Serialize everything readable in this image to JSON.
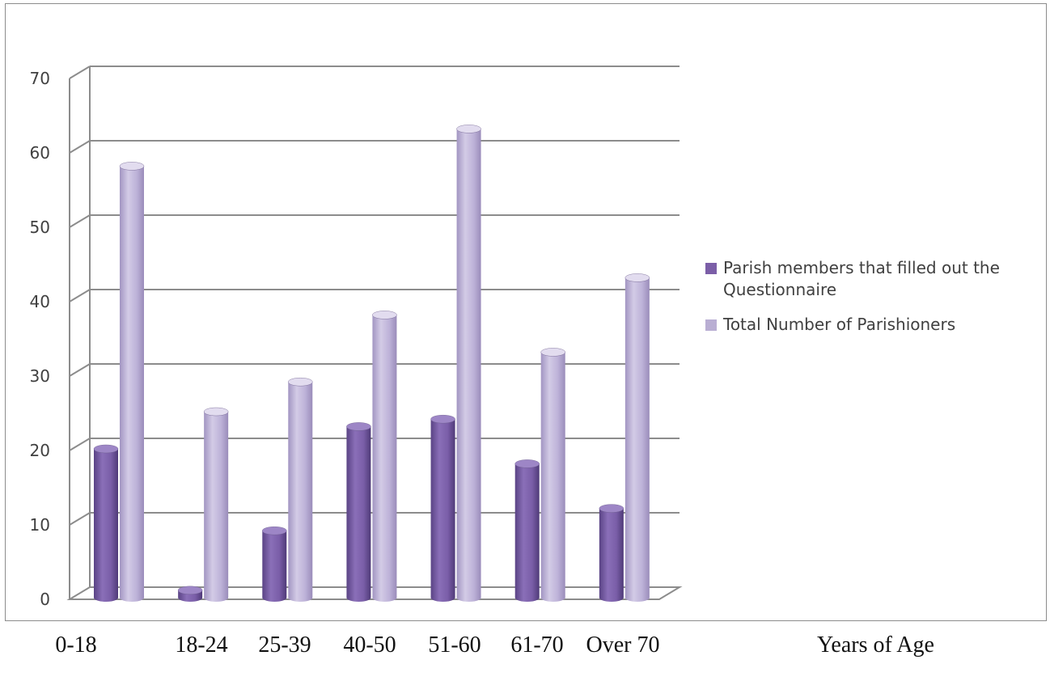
{
  "chart_data": {
    "type": "bar",
    "style": "3d-cylinder",
    "categories": [
      "0-18",
      "18-24",
      "25-39",
      "40-50",
      "51-60",
      "61-70",
      "Over 70"
    ],
    "series": [
      {
        "name": "Parish members that filled out the Questionnaire",
        "values": [
          20,
          1,
          9,
          23,
          24,
          18,
          12
        ],
        "color": "#7b5ea7"
      },
      {
        "name": "Total Number of Parishioners",
        "values": [
          58,
          25,
          29,
          38,
          63,
          33,
          43
        ],
        "color": "#b9aed3"
      }
    ],
    "ylim": [
      0,
      70
    ],
    "yticks": [
      "0",
      "10",
      "20",
      "30",
      "40",
      "50",
      "60",
      "70"
    ],
    "xlabel": "Years of Age",
    "legend_position": "right",
    "grid": true
  },
  "legend": {
    "line1a": "Parish members that filled out the",
    "line1b": "Questionnaire",
    "line2": "Total Number of Parishioners"
  }
}
